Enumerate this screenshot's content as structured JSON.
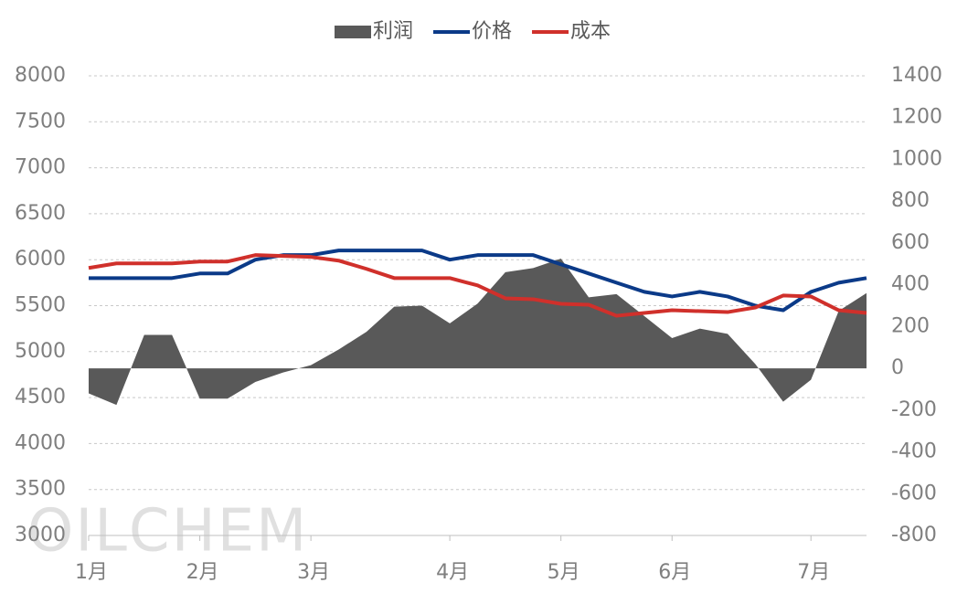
{
  "chart_data": {
    "type": "combo",
    "watermark": "OILCHEM",
    "categories": [
      "1月",
      null,
      null,
      null,
      "2月",
      null,
      null,
      null,
      "3月",
      null,
      null,
      null,
      null,
      "4月",
      null,
      null,
      null,
      "5月",
      null,
      null,
      null,
      "6月",
      null,
      null,
      null,
      null,
      "7月",
      null,
      null
    ],
    "series": [
      {
        "name": "利润",
        "type": "area",
        "axis": "y2",
        "color": "#595959",
        "values": [
          -120,
          -175,
          160,
          160,
          -145,
          -145,
          -65,
          -20,
          15,
          90,
          175,
          295,
          300,
          215,
          310,
          460,
          480,
          525,
          340,
          355,
          250,
          145,
          190,
          165,
          20,
          -160,
          -55,
          275,
          360
        ]
      },
      {
        "name": "价格",
        "type": "line",
        "color": "#0b3a88",
        "values": [
          5800,
          5800,
          5800,
          5800,
          5850,
          5850,
          6000,
          6050,
          6050,
          6100,
          6100,
          6100,
          6100,
          6000,
          6050,
          6050,
          6050,
          5950,
          5850,
          5750,
          5650,
          5600,
          5650,
          5600,
          5500,
          5450,
          5650,
          5750,
          5800
        ]
      },
      {
        "name": "成本",
        "type": "line",
        "color": "#d0302b",
        "values": [
          5910,
          5960,
          5960,
          5960,
          5980,
          5980,
          6050,
          6040,
          6030,
          5990,
          5900,
          5800,
          5800,
          5800,
          5720,
          5580,
          5570,
          5520,
          5510,
          5390,
          5420,
          5450,
          5440,
          5430,
          5480,
          5610,
          5600,
          5450,
          5420
        ]
      }
    ],
    "ylim": [
      3000,
      8000
    ],
    "yticks": [
      3000,
      3500,
      4000,
      4500,
      5000,
      5500,
      6000,
      6500,
      7000,
      7500,
      8000
    ],
    "y2lim": [
      -800,
      1400
    ],
    "y2ticks": [
      -800,
      -600,
      -400,
      -200,
      0,
      200,
      400,
      600,
      800,
      1000,
      1200,
      1400
    ],
    "grid": true,
    "legend": "top"
  }
}
